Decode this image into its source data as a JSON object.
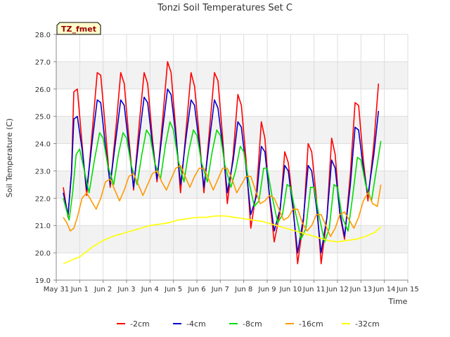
{
  "chart_data": {
    "type": "line",
    "title": "Tonzi Soil Temperatures Set C",
    "xlabel": "Time",
    "ylabel": "Soil Temperature (C)",
    "badge": "TZ_fmet",
    "xlim": [
      0,
      15
    ],
    "ylim": [
      19.0,
      28.0
    ],
    "xtick_values": [
      0,
      1,
      2,
      3,
      4,
      5,
      6,
      7,
      8,
      9,
      10,
      11,
      12,
      13,
      14,
      15
    ],
    "xtick_labels": [
      "May 31",
      "Jun 1",
      "Jun 2",
      "Jun 3",
      "Jun 4",
      "Jun 5",
      "Jun 6",
      "Jun 7",
      "Jun 8",
      "Jun 9",
      "Jun 10",
      "Jun 11",
      "Jun 12",
      "Jun 13",
      "Jun 14",
      "Jun 15"
    ],
    "ytick_values": [
      19,
      20,
      21,
      22,
      23,
      24,
      25,
      26,
      27,
      28
    ],
    "ytick_labels": [
      "19.0",
      "20.0",
      "21.0",
      "22.0",
      "23.0",
      "24.0",
      "25.0",
      "26.0",
      "27.0",
      "28.0"
    ],
    "grid": true,
    "shaded_bands": true,
    "legend_position": "bottom",
    "series": [
      {
        "name": "-2cm",
        "color": "#ff0000",
        "x": [
          0.3,
          0.5,
          0.65,
          0.75,
          0.9,
          1.1,
          1.3,
          1.55,
          1.75,
          1.9,
          2.1,
          2.3,
          2.55,
          2.75,
          2.9,
          3.1,
          3.3,
          3.55,
          3.75,
          3.9,
          4.1,
          4.3,
          4.55,
          4.75,
          4.9,
          5.1,
          5.3,
          5.55,
          5.75,
          5.9,
          6.1,
          6.3,
          6.55,
          6.75,
          6.9,
          7.1,
          7.3,
          7.55,
          7.75,
          7.9,
          8.1,
          8.3,
          8.55,
          8.75,
          8.9,
          9.1,
          9.3,
          9.55,
          9.75,
          9.9,
          10.1,
          10.3,
          10.55,
          10.75,
          10.9,
          11.1,
          11.3,
          11.55,
          11.75,
          11.9,
          12.1,
          12.3,
          12.55,
          12.75,
          12.9,
          13.1,
          13.3,
          13.55,
          13.75
        ],
        "y": [
          22.4,
          21.3,
          23.0,
          25.9,
          26.0,
          24.0,
          22.1,
          24.6,
          26.6,
          26.5,
          24.5,
          22.4,
          24.6,
          26.6,
          26.2,
          24.2,
          22.3,
          24.8,
          26.6,
          26.2,
          24.2,
          22.6,
          25.0,
          27.0,
          26.6,
          24.5,
          22.2,
          24.6,
          26.6,
          26.1,
          24.3,
          22.2,
          24.6,
          26.6,
          26.3,
          24.2,
          21.8,
          23.6,
          25.8,
          25.4,
          23.4,
          20.9,
          22.3,
          24.8,
          24.2,
          22.0,
          20.4,
          21.5,
          23.7,
          23.3,
          21.8,
          19.6,
          21.2,
          24.0,
          23.7,
          22.0,
          19.6,
          21.3,
          24.2,
          23.6,
          21.4,
          20.5,
          22.9,
          25.5,
          25.4,
          23.4,
          21.9,
          24.0,
          26.2
        ]
      },
      {
        "name": "-4cm",
        "color": "#0000cc",
        "x": [
          0.3,
          0.5,
          0.65,
          0.75,
          0.9,
          1.1,
          1.3,
          1.55,
          1.75,
          1.9,
          2.1,
          2.3,
          2.55,
          2.75,
          2.9,
          3.1,
          3.3,
          3.55,
          3.75,
          3.9,
          4.1,
          4.3,
          4.55,
          4.75,
          4.9,
          5.1,
          5.3,
          5.55,
          5.75,
          5.9,
          6.1,
          6.3,
          6.55,
          6.75,
          6.9,
          7.1,
          7.3,
          7.55,
          7.75,
          7.9,
          8.1,
          8.3,
          8.55,
          8.75,
          8.9,
          9.1,
          9.3,
          9.55,
          9.75,
          9.9,
          10.1,
          10.3,
          10.55,
          10.75,
          10.9,
          11.1,
          11.3,
          11.55,
          11.75,
          11.9,
          12.1,
          12.3,
          12.55,
          12.75,
          12.9,
          13.1,
          13.3,
          13.55,
          13.75
        ],
        "y": [
          22.2,
          21.4,
          22.9,
          24.9,
          25.0,
          23.8,
          22.3,
          24.2,
          25.6,
          25.5,
          23.9,
          22.5,
          24.2,
          25.6,
          25.4,
          23.9,
          22.4,
          24.3,
          25.7,
          25.5,
          24.0,
          22.7,
          24.6,
          26.0,
          25.8,
          24.3,
          22.5,
          24.3,
          25.6,
          25.4,
          24.0,
          22.4,
          24.2,
          25.6,
          25.3,
          23.9,
          22.2,
          23.4,
          24.8,
          24.6,
          23.1,
          21.4,
          22.1,
          23.9,
          23.7,
          22.1,
          20.8,
          21.6,
          23.2,
          23.0,
          21.6,
          20.0,
          21.3,
          23.2,
          23.0,
          21.7,
          20.0,
          21.3,
          23.4,
          23.1,
          21.5,
          20.6,
          22.5,
          24.6,
          24.5,
          23.1,
          22.1,
          23.6,
          25.2
        ]
      },
      {
        "name": "-8cm",
        "color": "#00dd00",
        "x": [
          0.3,
          0.55,
          0.7,
          0.85,
          1.0,
          1.2,
          1.4,
          1.65,
          1.85,
          2.0,
          2.2,
          2.45,
          2.65,
          2.85,
          3.0,
          3.2,
          3.45,
          3.65,
          3.85,
          4.0,
          4.2,
          4.45,
          4.65,
          4.85,
          5.0,
          5.2,
          5.45,
          5.65,
          5.85,
          6.0,
          6.2,
          6.45,
          6.65,
          6.85,
          7.0,
          7.2,
          7.45,
          7.65,
          7.85,
          8.0,
          8.2,
          8.45,
          8.65,
          8.85,
          9.0,
          9.2,
          9.45,
          9.65,
          9.85,
          10.0,
          10.2,
          10.45,
          10.65,
          10.85,
          11.0,
          11.2,
          11.45,
          11.65,
          11.85,
          12.0,
          12.2,
          12.45,
          12.65,
          12.85,
          13.0,
          13.2,
          13.45,
          13.65,
          13.85
        ],
        "y": [
          22.0,
          21.2,
          22.2,
          23.6,
          23.8,
          23.0,
          22.2,
          23.5,
          24.4,
          24.2,
          23.2,
          22.5,
          23.6,
          24.4,
          24.2,
          23.2,
          22.5,
          23.6,
          24.5,
          24.3,
          23.3,
          22.7,
          23.9,
          24.8,
          24.5,
          23.4,
          22.6,
          23.7,
          24.5,
          24.3,
          23.3,
          22.6,
          23.7,
          24.5,
          24.3,
          23.2,
          22.4,
          23.0,
          23.9,
          23.7,
          22.7,
          21.7,
          21.9,
          23.1,
          23.1,
          22.1,
          21.1,
          21.4,
          22.5,
          22.4,
          21.5,
          20.5,
          20.9,
          22.4,
          22.4,
          21.4,
          20.4,
          20.9,
          22.5,
          22.4,
          21.3,
          20.8,
          22.1,
          23.5,
          23.4,
          22.5,
          21.9,
          23.0,
          24.1
        ]
      },
      {
        "name": "-16cm",
        "color": "#ff9900",
        "x": [
          0.3,
          0.45,
          0.6,
          0.75,
          0.9,
          1.1,
          1.3,
          1.5,
          1.7,
          1.9,
          2.1,
          2.3,
          2.5,
          2.7,
          2.9,
          3.1,
          3.3,
          3.5,
          3.7,
          3.9,
          4.1,
          4.3,
          4.5,
          4.7,
          4.9,
          5.1,
          5.3,
          5.5,
          5.7,
          5.9,
          6.1,
          6.3,
          6.5,
          6.7,
          6.9,
          7.1,
          7.3,
          7.5,
          7.7,
          7.9,
          8.1,
          8.3,
          8.5,
          8.7,
          8.9,
          9.1,
          9.3,
          9.5,
          9.7,
          9.9,
          10.1,
          10.3,
          10.5,
          10.7,
          10.9,
          11.1,
          11.3,
          11.5,
          11.7,
          11.9,
          12.1,
          12.3,
          12.5,
          12.7,
          12.9,
          13.1,
          13.3,
          13.5,
          13.7,
          13.85
        ],
        "y": [
          21.3,
          21.1,
          20.8,
          20.9,
          21.3,
          22.0,
          22.2,
          21.9,
          21.6,
          22.0,
          22.6,
          22.7,
          22.3,
          21.9,
          22.3,
          22.8,
          22.9,
          22.5,
          22.1,
          22.5,
          22.9,
          23.0,
          22.6,
          22.3,
          22.7,
          23.1,
          23.2,
          22.8,
          22.4,
          22.8,
          23.1,
          23.1,
          22.7,
          22.3,
          22.7,
          23.1,
          23.1,
          22.7,
          22.2,
          22.5,
          22.8,
          22.8,
          22.3,
          21.8,
          21.9,
          22.1,
          22.0,
          21.6,
          21.2,
          21.3,
          21.6,
          21.6,
          21.1,
          20.8,
          21.0,
          21.4,
          21.4,
          21.0,
          20.6,
          20.9,
          21.4,
          21.5,
          21.2,
          20.9,
          21.3,
          21.9,
          22.2,
          21.8,
          21.7,
          22.5
        ]
      },
      {
        "name": "-32cm",
        "color": "#ffff00",
        "x": [
          0.3,
          0.7,
          1.0,
          1.3,
          1.6,
          2.0,
          2.4,
          2.8,
          3.2,
          3.6,
          4.0,
          4.4,
          4.8,
          5.2,
          5.6,
          6.0,
          6.4,
          6.8,
          7.2,
          7.6,
          8.0,
          8.4,
          8.8,
          9.2,
          9.6,
          10.0,
          10.4,
          10.8,
          11.2,
          11.6,
          12.0,
          12.4,
          12.8,
          13.2,
          13.6,
          13.85
        ],
        "y": [
          19.6,
          19.75,
          19.85,
          20.05,
          20.25,
          20.45,
          20.6,
          20.7,
          20.8,
          20.9,
          21.0,
          21.05,
          21.1,
          21.2,
          21.25,
          21.3,
          21.3,
          21.35,
          21.35,
          21.3,
          21.25,
          21.2,
          21.15,
          21.05,
          20.95,
          20.85,
          20.75,
          20.65,
          20.55,
          20.45,
          20.4,
          20.45,
          20.5,
          20.6,
          20.75,
          20.95
        ]
      }
    ]
  }
}
